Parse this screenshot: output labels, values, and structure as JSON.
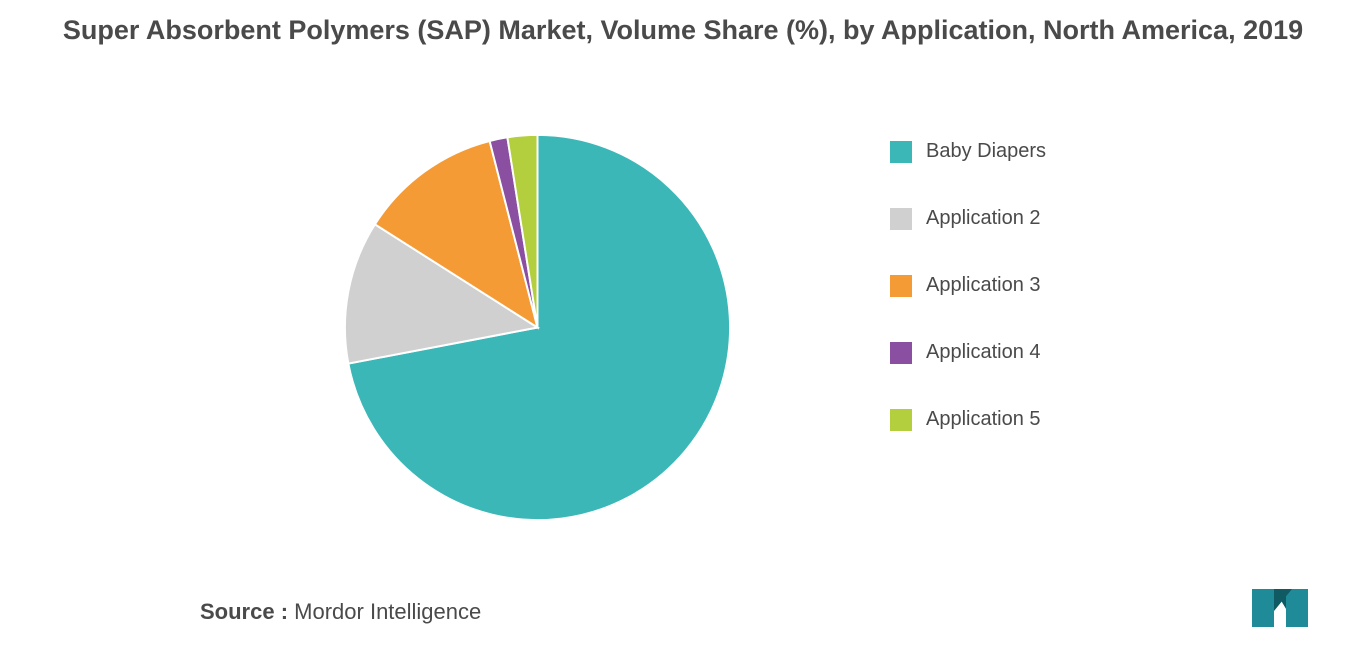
{
  "title": "Super Absorbent Polymers (SAP) Market, Volume Share (%), by Application, North America, 2019",
  "source_label": "Source :",
  "source_value": "Mordor Intelligence",
  "chart": {
    "type": "pie",
    "background_color": "#ffffff",
    "title_fontsize": 27,
    "title_fontweight": 600,
    "legend_fontsize": 20,
    "stroke_color": "#ffffff",
    "stroke_width": 2,
    "start_angle_deg": -90,
    "slices": [
      {
        "label": "Baby Diapers",
        "value": 72.0,
        "color": "#3cb7b7"
      },
      {
        "label": "Application 2",
        "value": 12.0,
        "color": "#d0d0d0"
      },
      {
        "label": "Application 3",
        "value": 12.0,
        "color": "#f59b36"
      },
      {
        "label": "Application 4",
        "value": 1.5,
        "color": "#8a4fa0"
      },
      {
        "label": "Application 5",
        "value": 2.5,
        "color": "#b3cf3d"
      }
    ]
  },
  "logo": {
    "bar_color": "#1f8b99",
    "triangle_color": "#0f5a63"
  }
}
